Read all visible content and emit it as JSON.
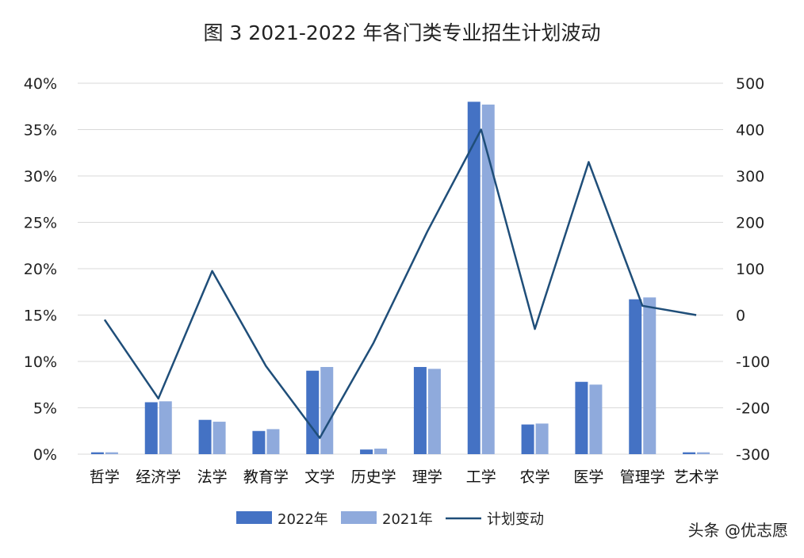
{
  "source_label": "头条 @优志愿",
  "chart_data": {
    "type": "bar",
    "title": "图 3 2021-2022 年各门类专业招生计划波动",
    "categories": [
      "哲学",
      "经济学",
      "法学",
      "教育学",
      "文学",
      "历史学",
      "理学",
      "工学",
      "农学",
      "医学",
      "管理学",
      "艺术学"
    ],
    "series": [
      {
        "name": "2022年",
        "kind": "bar",
        "axis": "left",
        "color": "#4472C4",
        "values": [
          0.2,
          5.6,
          3.7,
          2.5,
          9.0,
          0.5,
          9.4,
          38.0,
          3.2,
          7.8,
          16.7,
          0.2
        ]
      },
      {
        "name": "2021年",
        "kind": "bar",
        "axis": "left",
        "color": "#8FAADC",
        "values": [
          0.2,
          5.7,
          3.5,
          2.7,
          9.4,
          0.6,
          9.2,
          37.7,
          3.3,
          7.5,
          16.9,
          0.2
        ]
      },
      {
        "name": "计划变动",
        "kind": "line",
        "axis": "right",
        "color": "#1F4E79",
        "values": [
          -10,
          -180,
          95,
          -110,
          -265,
          -60,
          180,
          400,
          -30,
          330,
          20,
          0
        ]
      }
    ],
    "y_left": {
      "ylim": [
        0,
        40
      ],
      "ticks": [
        "0%",
        "5%",
        "10%",
        "15%",
        "20%",
        "25%",
        "30%",
        "35%",
        "40%"
      ]
    },
    "y_right": {
      "ylim": [
        -300,
        500
      ],
      "ticks": [
        "-300",
        "-200",
        "-100",
        "0",
        "100",
        "200",
        "300",
        "400",
        "500"
      ]
    },
    "grid": true,
    "legend_position": "bottom"
  }
}
